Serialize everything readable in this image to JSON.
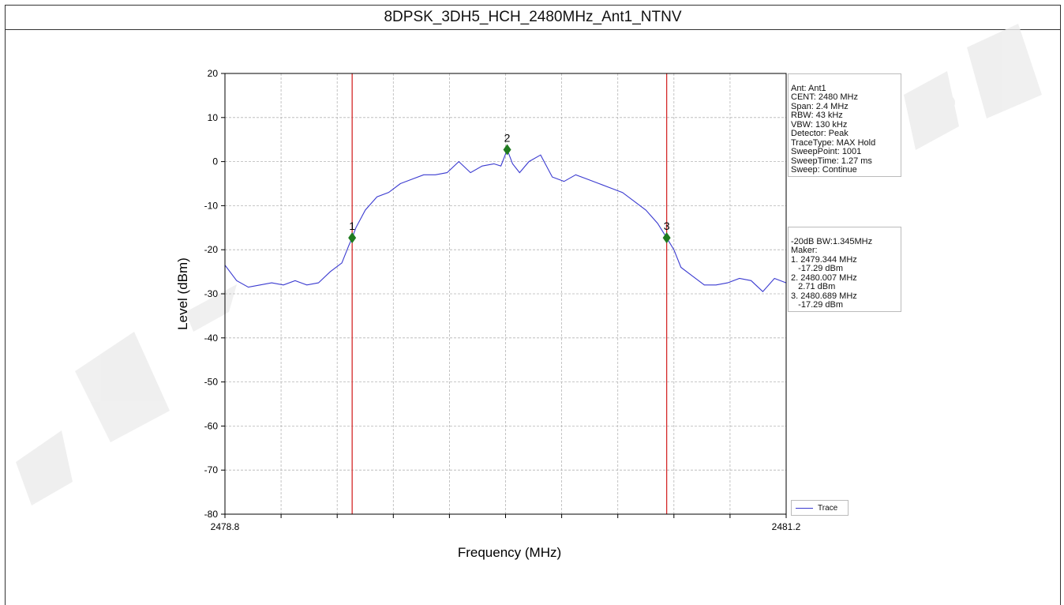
{
  "header": {
    "title": "8DPSK_3DH5_HCH_2480MHz_Ant1_NTNV"
  },
  "info_lines": [
    "Ant: Ant1",
    "CENT: 2480 MHz",
    "Span: 2.4 MHz",
    "RBW: 43 kHz",
    "VBW: 130 kHz",
    "Detector: Peak",
    "TraceType: MAX Hold",
    "SweepPoint: 1001",
    "SweepTime: 1.27 ms",
    "Sweep: Continue"
  ],
  "marker_lines": [
    "-20dB BW:1.345MHz",
    "Maker:",
    "1. 2479.344 MHz",
    "   -17.29 dBm",
    "2. 2480.007 MHz",
    "   2.71 dBm",
    "3. 2480.689 MHz",
    "   -17.29 dBm"
  ],
  "colors": {
    "trace": "#3a3ad0",
    "vline": "#d42a2a",
    "marker": "#1f7a1f",
    "watermark": "#e6e6e6"
  },
  "chart_data": {
    "type": "line",
    "title": "8DPSK_3DH5_HCH_2480MHz_Ant1_NTNV",
    "xlabel": "Frequency (MHz)",
    "ylabel": "Level (dBm)",
    "xlim": [
      2478.8,
      2481.2
    ],
    "ylim": [
      -80,
      20
    ],
    "x_tick_labels": [
      {
        "value": 2478.8,
        "label": "2478.8"
      },
      {
        "value": 2481.2,
        "label": "2481.2"
      }
    ],
    "x_minor_ticks": [
      2479.04,
      2479.28,
      2479.52,
      2479.76,
      2480.0,
      2480.24,
      2480.48,
      2480.72,
      2480.96
    ],
    "yticks": [
      20,
      10,
      0,
      -10,
      -20,
      -30,
      -40,
      -50,
      -60,
      -70,
      -80
    ],
    "grid": true,
    "legend": "bottom-right",
    "series": [
      {
        "name": "Trace",
        "x": [
          2478.8,
          2478.85,
          2478.9,
          2478.95,
          2479.0,
          2479.05,
          2479.1,
          2479.15,
          2479.2,
          2479.25,
          2479.3,
          2479.33,
          2479.344,
          2479.36,
          2479.4,
          2479.45,
          2479.5,
          2479.55,
          2479.6,
          2479.65,
          2479.7,
          2479.75,
          2479.8,
          2479.85,
          2479.9,
          2479.95,
          2479.98,
          2480.007,
          2480.03,
          2480.06,
          2480.1,
          2480.15,
          2480.2,
          2480.25,
          2480.3,
          2480.35,
          2480.4,
          2480.45,
          2480.5,
          2480.55,
          2480.6,
          2480.65,
          2480.689,
          2480.72,
          2480.75,
          2480.8,
          2480.85,
          2480.9,
          2480.95,
          2481.0,
          2481.05,
          2481.1,
          2481.15,
          2481.2
        ],
        "y": [
          -23.5,
          -27,
          -28.5,
          -28,
          -27.5,
          -28,
          -27,
          -28,
          -27.5,
          -25,
          -23,
          -19,
          -17.29,
          -15,
          -11,
          -8,
          -7,
          -5,
          -4,
          -3,
          -3,
          -2.5,
          0,
          -2.5,
          -1,
          -0.5,
          -1,
          2.71,
          -0.5,
          -2.5,
          0,
          1.5,
          -3.5,
          -4.5,
          -3,
          -4,
          -5,
          -6,
          -7,
          -9,
          -11,
          -14,
          -17.29,
          -20,
          -24,
          -26,
          -28,
          -28,
          -27.5,
          -26.5,
          -27,
          -29.5,
          -26.5,
          -27.5
        ]
      }
    ],
    "vlines": [
      2479.344,
      2480.689
    ],
    "markers": [
      {
        "label": "1",
        "x": 2479.344,
        "y": -17.29
      },
      {
        "label": "2",
        "x": 2480.007,
        "y": 2.71
      },
      {
        "label": "3",
        "x": 2480.689,
        "y": -17.29
      }
    ]
  }
}
